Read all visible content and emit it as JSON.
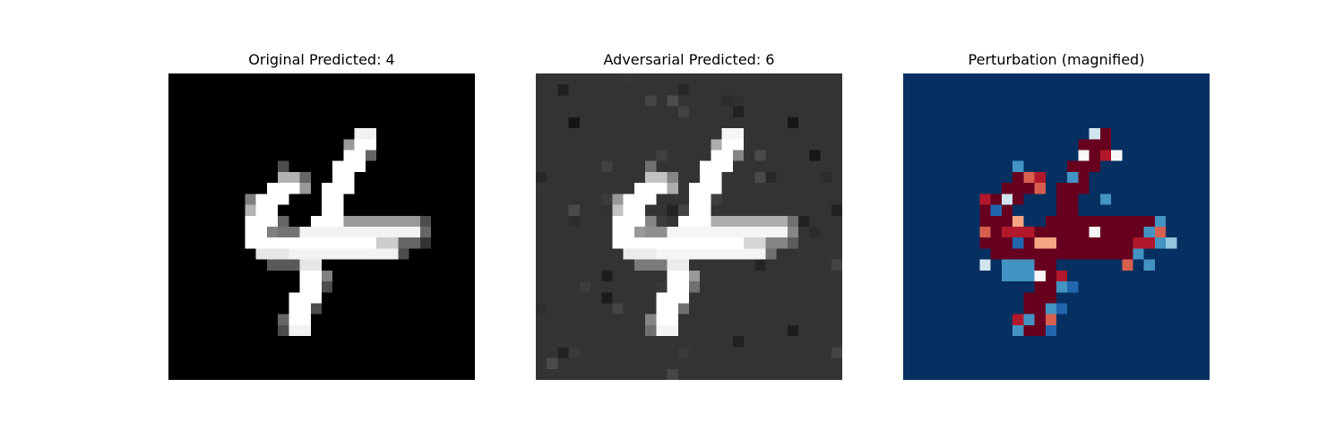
{
  "figure": {
    "panels": [
      {
        "id": "original",
        "title": "Original Predicted: 4",
        "colormap": "gray",
        "background_color": "#000000"
      },
      {
        "id": "adversarial",
        "title": "Adversarial Predicted: 6",
        "colormap": "gray",
        "background_color": "#333333"
      },
      {
        "id": "perturbation",
        "title": "Perturbation (magnified)",
        "colormap": "RdBu_r",
        "background_color": "#053061",
        "stroke_color": "#67001f"
      }
    ]
  }
}
